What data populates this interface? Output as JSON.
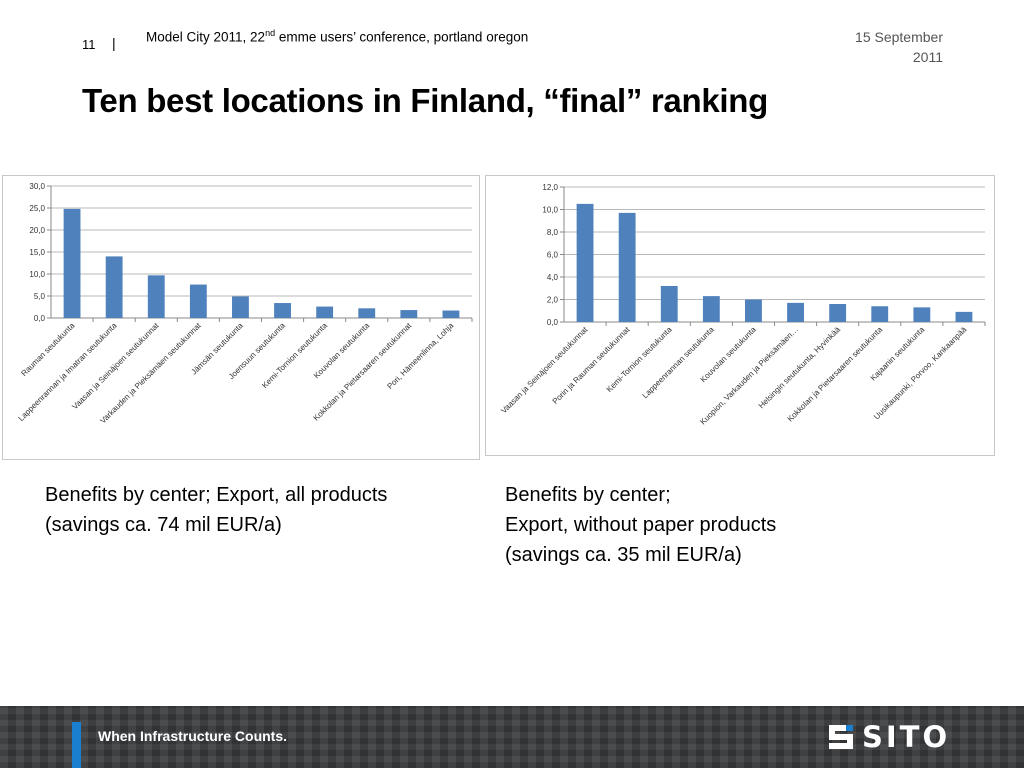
{
  "header": {
    "slide_number": "11",
    "separator": "|",
    "conference_prefix": "Model City 2011, 22",
    "conference_sup": "nd",
    "conference_suffix": " emme users’ conference, portland oregon",
    "date_line1": "15 September",
    "date_line2": "2011"
  },
  "title": "Ten best locations in Finland, “final” ranking",
  "captions": {
    "left_line1": "Benefits by center; Export, all products",
    "left_line2": "(savings ca. 74 mil EUR/a)",
    "right_line1": "Benefits by center;",
    "right_line2": "Export, without paper products",
    "right_line3": "(savings ca. 35 mil EUR/a)"
  },
  "footer": {
    "tagline": "When Infrastructure Counts.",
    "logo_text": "SITO",
    "accent_color": "#1b7fd0"
  },
  "chart_data": [
    {
      "type": "bar",
      "color": "#4f81bd",
      "ylim": [
        0,
        30
      ],
      "ytick_step": 5,
      "yticks": [
        "0,0",
        "5,0",
        "10,0",
        "15,0",
        "20,0",
        "25,0",
        "30,0"
      ],
      "grid": true,
      "categories": [
        "Rauman seutukunta",
        "Lappeenrannan ja Imatran seutukunta",
        "Vaasan ja Seinäjoen seutukunnat",
        "Varkauden ja Pieksämäen seutukunnat",
        "Jämsän seutukunta",
        "Joensuun seutukunta",
        "Kemi-Tornion seutukunta",
        "Kouvolan seutukunta",
        "Kokkolan ja Pietarsaaren seutukunnat",
        "Pori, Hämeenlinna, Lohja"
      ],
      "values": [
        24.8,
        14.0,
        9.7,
        7.6,
        4.9,
        3.4,
        2.6,
        2.2,
        1.8,
        1.7
      ]
    },
    {
      "type": "bar",
      "color": "#4f81bd",
      "ylim": [
        0,
        12
      ],
      "ytick_step": 2,
      "yticks": [
        "0,0",
        "2,0",
        "4,0",
        "6,0",
        "8,0",
        "10,0",
        "12,0"
      ],
      "grid": true,
      "categories": [
        "Vaasan ja Seinäjoen seutukunnat",
        "Porin ja Rauman seutukunnat",
        "Kemi-Tornion seutukunta",
        "Lappeenrannan seutukunta",
        "Kouvolan seutukunta",
        "Kuopion, Varkauden ja Pieksämäen…",
        "Helsingin seutukunta, Hyvinkää",
        "Kokkolan ja Pietarsaaren seutukunta",
        "Kajaanin seutukunta",
        "Uusikaupunki, Porvoo, Kankaanpää"
      ],
      "values": [
        10.5,
        9.7,
        3.2,
        2.3,
        2.0,
        1.7,
        1.6,
        1.4,
        1.3,
        0.9
      ]
    }
  ]
}
